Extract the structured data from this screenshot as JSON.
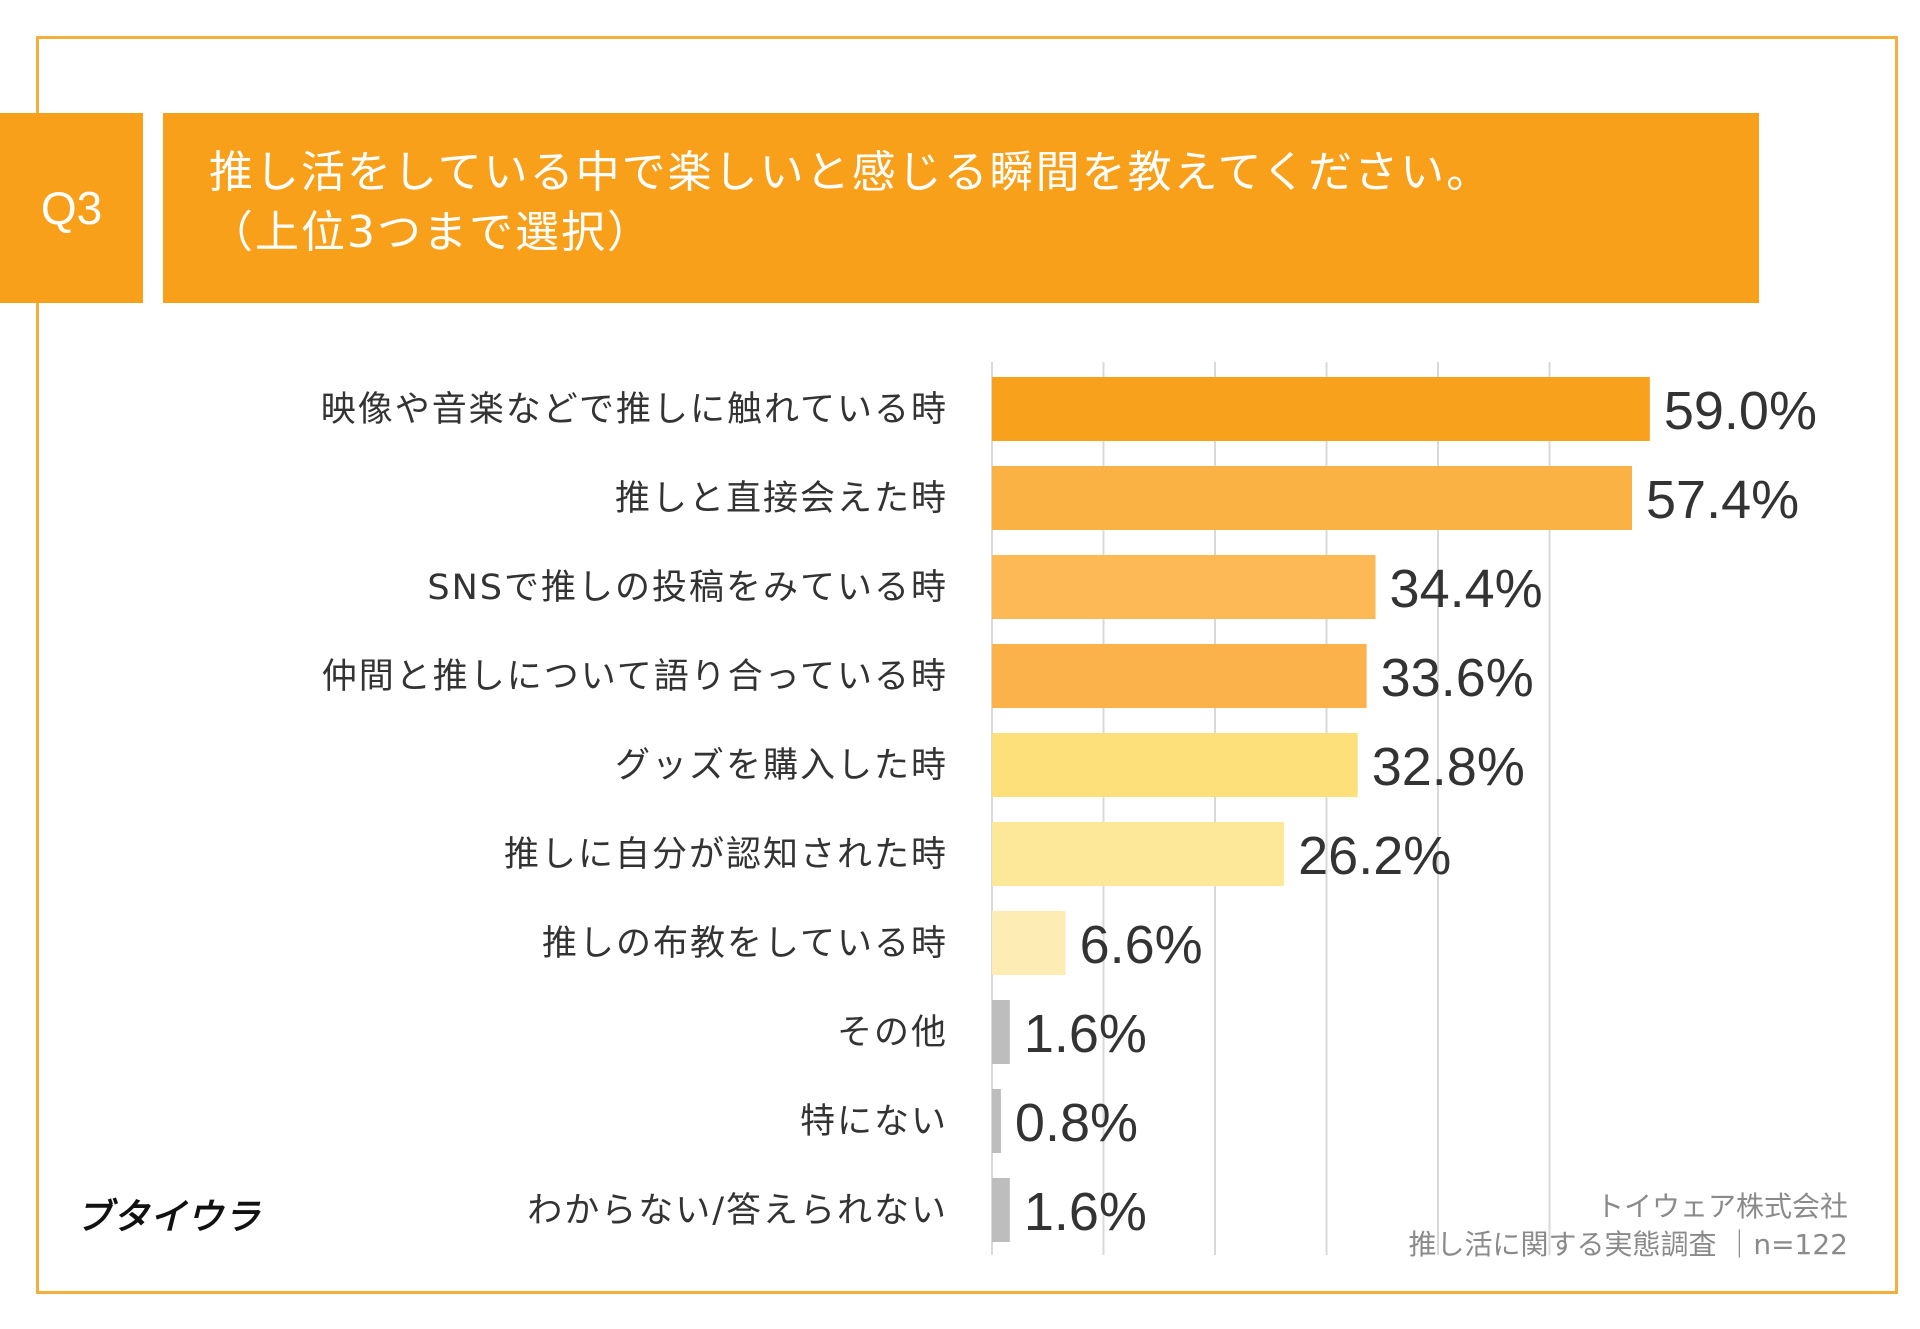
{
  "question": {
    "number": "Q3",
    "title_line1": "推し活をしている中で楽しいと感じる瞬間を教えてください。",
    "title_line2": "（上位3つまで選択）"
  },
  "brand": "ブタイウラ",
  "credit": {
    "company": "トイウェア株式会社",
    "survey": "推し活に関する実態調査 ｜n=122"
  },
  "colors": {
    "header": "#f9a01b",
    "frame": "#f3ae3c",
    "gridline": "#d9d9d9",
    "label_text": "#333333",
    "value_text": "#333333"
  },
  "chart_data": {
    "type": "bar",
    "orientation": "horizontal",
    "title": "推し活をしている中で楽しいと感じる瞬間を教えてください。（上位3つまで選択）",
    "unit": "%",
    "xlim": [
      0,
      60
    ],
    "grid": true,
    "categories": [
      "映像や音楽などで推しに触れている時",
      "推しと直接会えた時",
      "SNSで推しの投稿をみている時",
      "仲間と推しについて語り合っている時",
      "グッズを購入した時",
      "推しに自分が認知された時",
      "推しの布教をしている時",
      "その他",
      "特にない",
      "わからない/答えられない"
    ],
    "values": [
      59.0,
      57.4,
      34.4,
      33.6,
      32.8,
      26.2,
      6.6,
      1.6,
      0.8,
      1.6
    ],
    "value_labels": [
      "59.0%",
      "57.4%",
      "34.4%",
      "33.6%",
      "32.8%",
      "26.2%",
      "6.6%",
      "1.6%",
      "0.8%",
      "1.6%"
    ],
    "bar_colors": [
      "#f7a11d",
      "#fbb245",
      "#fdb955",
      "#fcb24b",
      "#fde07a",
      "#fde89a",
      "#fdedb5",
      "#bdbdbd",
      "#bdbdbd",
      "#bdbdbd"
    ]
  }
}
